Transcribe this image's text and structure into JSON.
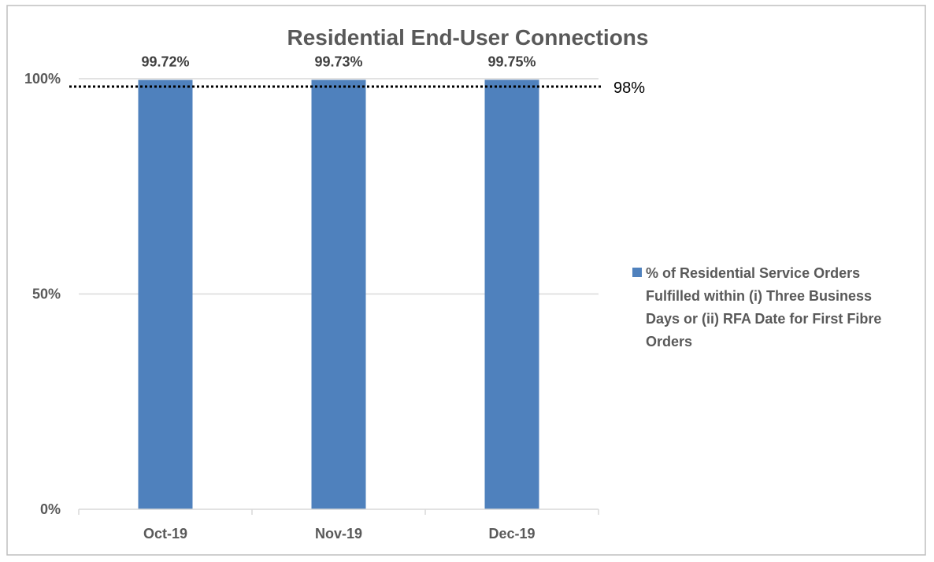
{
  "chart_data": {
    "type": "bar",
    "title": "Residential End-User Connections",
    "categories": [
      "Oct-19",
      "Nov-19",
      "Dec-19"
    ],
    "series": [
      {
        "name": "% of Residential Service Orders Fulfilled within (i) Three Business Days or (ii) RFA Date for First Fibre Orders",
        "values": [
          99.72,
          99.73,
          99.75
        ],
        "data_labels": [
          "99.72%",
          "99.73%",
          "99.75%"
        ],
        "color": "#4F81BD"
      }
    ],
    "ylim": [
      0,
      100
    ],
    "yticks": [
      {
        "value": 0,
        "label": "0%"
      },
      {
        "value": 50,
        "label": "50%"
      },
      {
        "value": 100,
        "label": "100%"
      }
    ],
    "target": {
      "value": 98,
      "label": "98%"
    },
    "legend_lines": [
      "% of Residential Service Orders",
      "Fulfilled within (i) Three Business",
      "Days or (ii) RFA Date for First Fibre",
      "Orders"
    ],
    "grid": true,
    "legend_position": "right",
    "colors": {
      "bar": "#4F81BD",
      "grid": "#D9D9D9",
      "border": "#BFBFBF",
      "target": "#000000"
    }
  }
}
